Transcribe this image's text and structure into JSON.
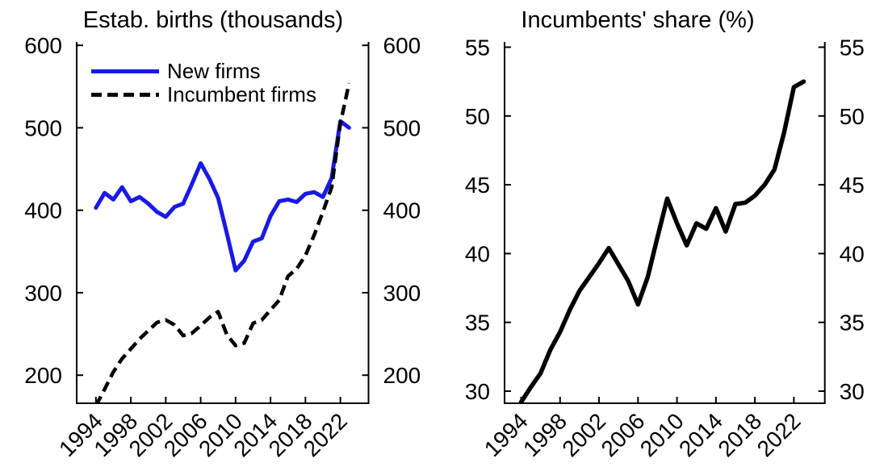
{
  "figure": {
    "background": "#ffffff",
    "text_color": "#000000"
  },
  "chart_data": [
    {
      "type": "line",
      "title": "Estab. births (thousands)",
      "xlabel": "",
      "ylabel": "",
      "xlim": [
        1992,
        2025.4
      ],
      "ylim": [
        166,
        606
      ],
      "grid": false,
      "legend_position": "upper-left-inside",
      "x_ticks": [
        1994,
        1998,
        2002,
        2006,
        2010,
        2014,
        2018,
        2022
      ],
      "y_ticks": [
        200,
        300,
        400,
        500,
        600
      ],
      "x": [
        1994,
        1995,
        1996,
        1997,
        1998,
        1999,
        2000,
        2001,
        2002,
        2003,
        2004,
        2005,
        2006,
        2007,
        2008,
        2009,
        2010,
        2011,
        2012,
        2013,
        2014,
        2015,
        2016,
        2017,
        2018,
        2019,
        2020,
        2021,
        2022,
        2023
      ],
      "series": [
        {
          "name": "New firms",
          "color": "#1919e6",
          "style": "solid",
          "values": [
            403,
            421,
            413,
            428,
            411,
            416,
            408,
            398,
            392,
            404,
            408,
            432,
            457,
            438,
            415,
            372,
            327,
            339,
            362,
            366,
            393,
            411,
            413,
            410,
            420,
            422,
            416,
            439,
            508,
            500
          ]
        },
        {
          "name": "Incumbent firms",
          "color": "#000000",
          "style": "dashed",
          "values": [
            163,
            183,
            204,
            220,
            232,
            244,
            254,
            264,
            267,
            261,
            248,
            251,
            260,
            270,
            277,
            249,
            236,
            239,
            263,
            267,
            279,
            291,
            320,
            329,
            345,
            370,
            398,
            428,
            505,
            554
          ]
        }
      ]
    },
    {
      "type": "line",
      "title": "Incumbents' share (%)",
      "xlabel": "",
      "ylabel": "",
      "xlim": [
        1992.3,
        2025.2
      ],
      "ylim": [
        29.3,
        55.5
      ],
      "grid": false,
      "legend_position": "none",
      "x_ticks": [
        1994,
        1998,
        2002,
        2006,
        2010,
        2014,
        2018,
        2022
      ],
      "y_ticks": [
        30,
        35,
        40,
        45,
        50,
        55
      ],
      "x": [
        1994,
        1995,
        1996,
        1997,
        1998,
        1999,
        2000,
        2001,
        2002,
        2003,
        2004,
        2005,
        2006,
        2007,
        2008,
        2009,
        2010,
        2011,
        2012,
        2013,
        2014,
        2015,
        2016,
        2017,
        2018,
        2019,
        2020,
        2021,
        2022,
        2023
      ],
      "series": [
        {
          "name": "Incumbents' share",
          "color": "#000000",
          "style": "solid",
          "values": [
            29.2,
            30.3,
            31.3,
            33.0,
            34.3,
            35.9,
            37.3,
            38.3,
            39.3,
            40.4,
            39.2,
            38.0,
            36.3,
            38.3,
            41.2,
            44.0,
            42.2,
            40.6,
            42.2,
            41.8,
            43.3,
            41.6,
            43.6,
            43.7,
            44.2,
            45.0,
            46.1,
            48.8,
            52.1,
            52.5
          ]
        }
      ]
    }
  ]
}
